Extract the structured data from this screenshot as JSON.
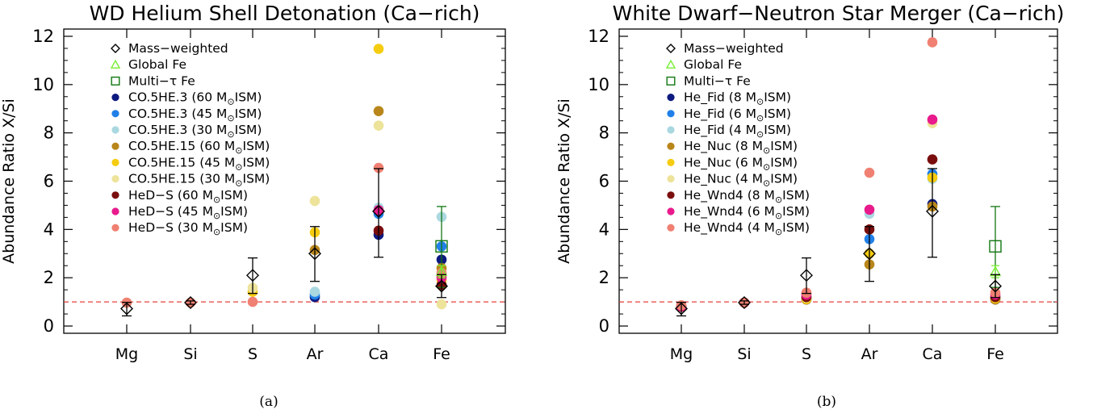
{
  "colors": {
    "ref_line": "#e8403f",
    "mass_weighted": "#000000",
    "global_fe": "#77ee33",
    "multi_tau_fe": "#117711"
  },
  "chart_data": [
    {
      "type": "scatter",
      "panel": "(a)",
      "title": "WD Helium Shell Detonation (Ca−rich)",
      "ylabel": "Abundance Ratio X/Si",
      "xlabel": "",
      "categories": [
        "Mg",
        "Si",
        "S",
        "Ar",
        "Ca",
        "Fe"
      ],
      "ylim": [
        -0.3,
        12.3
      ],
      "yticks": [
        0,
        2,
        4,
        6,
        8,
        10,
        12
      ],
      "ref_line_y": 1.0,
      "legend_position": "top-left",
      "mass_weighted": {
        "label": "Mass−weighted",
        "values": [
          0.72,
          0.97,
          2.1,
          3.0,
          4.75,
          1.65
        ],
        "err_low": [
          0.42,
          0.9,
          1.35,
          1.85,
          2.85,
          1.18
        ],
        "err_high": [
          0.98,
          1.04,
          2.82,
          4.12,
          6.52,
          2.13
        ]
      },
      "global_fe": {
        "label": "Global Fe",
        "category": "Fe",
        "value": 2.25,
        "err_low": 2.0,
        "err_high": 2.5
      },
      "multi_tau_fe": {
        "label": "Multi−τ Fe",
        "category": "Fe",
        "value": 3.3,
        "err_low": 1.6,
        "err_high": 4.95
      },
      "series": [
        {
          "label": "CO.5HE.3 (60 M⊙ISM)",
          "color": "#0d1a80",
          "values": [
            null,
            null,
            null,
            1.2,
            3.78,
            2.75
          ]
        },
        {
          "label": "CO.5HE.3 (45 M⊙ISM)",
          "color": "#2080e8",
          "values": [
            null,
            null,
            null,
            1.3,
            4.65,
            3.3
          ]
        },
        {
          "label": "CO.5HE.3 (30 M⊙ISM)",
          "color": "#aad8e0",
          "values": [
            null,
            null,
            null,
            1.42,
            4.9,
            4.52
          ]
        },
        {
          "label": "CO.5HE.15 (60 M⊙ISM)",
          "color": "#b8861a",
          "values": [
            null,
            null,
            null,
            3.15,
            8.9,
            2.4
          ]
        },
        {
          "label": "CO.5HE.15 (45 M⊙ISM)",
          "color": "#f5cc10",
          "values": [
            null,
            null,
            1.42,
            3.88,
            11.48,
            1.9
          ]
        },
        {
          "label": "CO.5HE.15 (30 M⊙ISM)",
          "color": "#ede39a",
          "values": [
            null,
            null,
            1.58,
            5.18,
            8.3,
            0.9
          ]
        },
        {
          "label": "HeD−S (60 M⊙ISM)",
          "color": "#7a0d0d",
          "values": [
            null,
            null,
            null,
            null,
            3.95,
            1.7
          ]
        },
        {
          "label": "HeD−S (45 M⊙ISM)",
          "color": "#e81a8c",
          "values": [
            null,
            null,
            null,
            null,
            4.8,
            2.0
          ]
        },
        {
          "label": "HeD−S (30 M⊙ISM)",
          "color": "#f08072",
          "values": [
            0.97,
            0.97,
            1.0,
            null,
            6.55,
            2.2
          ]
        }
      ]
    },
    {
      "type": "scatter",
      "panel": "(b)",
      "title": "White Dwarf−Neutron Star Merger (Ca−rich)",
      "ylabel": "Abundance Ratio X/Si",
      "xlabel": "",
      "categories": [
        "Mg",
        "Si",
        "S",
        "Ar",
        "Ca",
        "Fe"
      ],
      "ylim": [
        -0.3,
        12.3
      ],
      "yticks": [
        0,
        2,
        4,
        6,
        8,
        10,
        12
      ],
      "ref_line_y": 1.0,
      "legend_position": "top-left",
      "mass_weighted": {
        "label": "Mass−weighted",
        "values": [
          0.72,
          0.97,
          2.1,
          3.0,
          4.75,
          1.65
        ],
        "err_low": [
          0.42,
          0.9,
          1.35,
          1.85,
          2.85,
          1.18
        ],
        "err_high": [
          0.98,
          1.04,
          2.82,
          4.12,
          6.52,
          2.13
        ]
      },
      "global_fe": {
        "label": "Global Fe",
        "category": "Fe",
        "value": 2.25,
        "err_low": 2.0,
        "err_high": 2.5
      },
      "multi_tau_fe": {
        "label": "Multi−τ Fe",
        "category": "Fe",
        "value": 3.3,
        "err_low": 1.6,
        "err_high": 4.95
      },
      "series": [
        {
          "label": "He_Fid (8 M⊙ISM)",
          "color": "#0d1a80",
          "values": [
            0.8,
            0.97,
            1.1,
            3.0,
            5.05,
            1.1
          ]
        },
        {
          "label": "He_Fid (6 M⊙ISM)",
          "color": "#2080e8",
          "values": [
            0.82,
            0.97,
            1.15,
            3.6,
            6.3,
            1.15
          ]
        },
        {
          "label": "He_Fid (4 M⊙ISM)",
          "color": "#aad8e0",
          "values": [
            0.85,
            0.97,
            1.2,
            4.65,
            6.1,
            1.2
          ]
        },
        {
          "label": "He_Nuc (8 M⊙ISM)",
          "color": "#b8861a",
          "values": [
            0.8,
            0.97,
            1.1,
            2.55,
            4.95,
            1.1
          ]
        },
        {
          "label": "He_Nuc (6 M⊙ISM)",
          "color": "#f5cc10",
          "values": [
            0.82,
            0.97,
            1.12,
            3.0,
            6.15,
            1.15
          ]
        },
        {
          "label": "He_Nuc (4 M⊙ISM)",
          "color": "#ede39a",
          "values": [
            0.85,
            0.97,
            1.18,
            4.0,
            8.4,
            1.2
          ]
        },
        {
          "label": "He_Wnd4 (8 M⊙ISM)",
          "color": "#7a0d0d",
          "values": [
            0.8,
            0.97,
            1.2,
            4.0,
            6.9,
            1.2
          ]
        },
        {
          "label": "He_Wnd4 (6 M⊙ISM)",
          "color": "#e81a8c",
          "values": [
            0.82,
            0.97,
            1.3,
            4.82,
            8.55,
            1.3
          ]
        },
        {
          "label": "He_Wnd4 (4 M⊙ISM)",
          "color": "#f08072",
          "values": [
            0.86,
            0.97,
            1.38,
            6.35,
            11.75,
            1.38
          ]
        }
      ]
    }
  ]
}
